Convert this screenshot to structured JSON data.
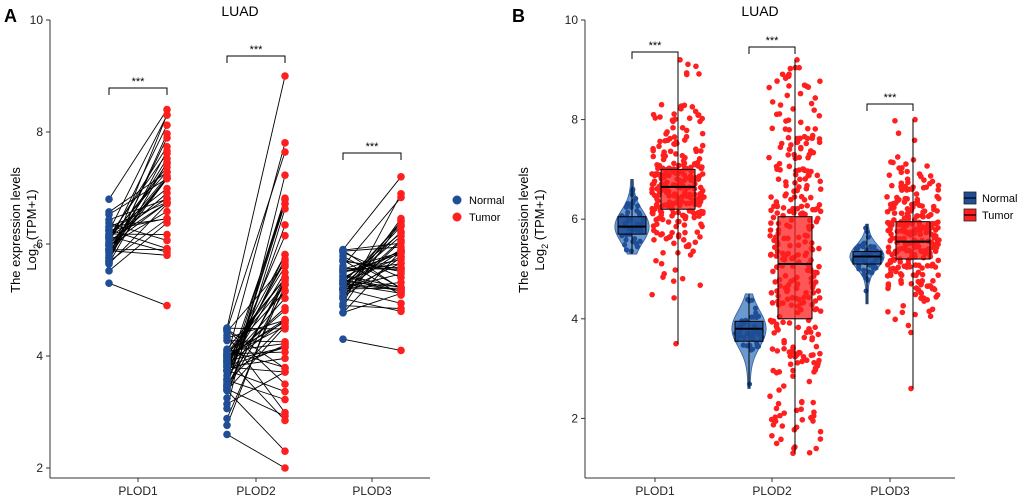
{
  "chart_data": [
    {
      "panel": "A",
      "type": "scatter",
      "title": "LUAD",
      "ylabel_line1": "The expression levels",
      "ylabel_line2": "Log",
      "ylabel_sub": "2",
      "ylabel_rest": " (TPM+1)",
      "ylim": [
        2,
        10
      ],
      "yticks": [
        2,
        4,
        6,
        8,
        10
      ],
      "categories": [
        "PLOD1",
        "PLOD2",
        "PLOD3"
      ],
      "significance": [
        "***",
        "***",
        "***"
      ],
      "legend": [
        {
          "name": "Normal",
          "color": "#1f4e96"
        },
        {
          "name": "Tumor",
          "color": "#ff1f1f"
        }
      ],
      "paired_summary": [
        {
          "gene": "PLOD1",
          "normal_range": [
            5.3,
            6.8
          ],
          "tumor_range": [
            4.9,
            8.4
          ],
          "normal_median": 6.0,
          "tumor_median": 6.9
        },
        {
          "gene": "PLOD2",
          "normal_range": [
            2.6,
            4.5
          ],
          "tumor_range": [
            2.0,
            9.0
          ],
          "normal_median": 3.8,
          "tumor_median": 5.1
        },
        {
          "gene": "PLOD3",
          "normal_range": [
            4.3,
            5.9
          ],
          "tumor_range": [
            4.1,
            7.2
          ],
          "normal_median": 5.3,
          "tumor_median": 5.7
        }
      ]
    },
    {
      "panel": "B",
      "type": "box",
      "title": "LUAD",
      "ylabel_line1": "The expression levels",
      "ylabel_line2": "Log",
      "ylabel_sub": "2",
      "ylabel_rest": " (TPM+1)",
      "ylim": [
        1.2,
        10
      ],
      "yticks": [
        2,
        4,
        6,
        8,
        10
      ],
      "categories": [
        "PLOD1",
        "PLOD2",
        "PLOD3"
      ],
      "significance": [
        "***",
        "***",
        "***"
      ],
      "legend": [
        {
          "name": "Normal",
          "color": "#1f4e96"
        },
        {
          "name": "Tumor",
          "color": "#ff1f1f"
        }
      ],
      "boxes": [
        {
          "gene": "PLOD1",
          "group": "Normal",
          "min": 5.3,
          "q1": 5.7,
          "median": 5.85,
          "q3": 6.05,
          "max": 6.8
        },
        {
          "gene": "PLOD1",
          "group": "Tumor",
          "min": 3.5,
          "q1": 6.2,
          "median": 6.65,
          "q3": 7.0,
          "max": 9.2
        },
        {
          "gene": "PLOD2",
          "group": "Normal",
          "min": 2.6,
          "q1": 3.55,
          "median": 3.8,
          "q3": 3.95,
          "max": 4.5
        },
        {
          "gene": "PLOD2",
          "group": "Tumor",
          "min": 1.3,
          "q1": 4.0,
          "median": 5.1,
          "q3": 6.05,
          "max": 9.2
        },
        {
          "gene": "PLOD3",
          "group": "Normal",
          "min": 4.3,
          "q1": 5.1,
          "median": 5.25,
          "q3": 5.35,
          "max": 5.9
        },
        {
          "gene": "PLOD3",
          "group": "Tumor",
          "min": 2.6,
          "q1": 5.2,
          "median": 5.55,
          "q3": 5.95,
          "max": 8.0
        }
      ]
    }
  ]
}
